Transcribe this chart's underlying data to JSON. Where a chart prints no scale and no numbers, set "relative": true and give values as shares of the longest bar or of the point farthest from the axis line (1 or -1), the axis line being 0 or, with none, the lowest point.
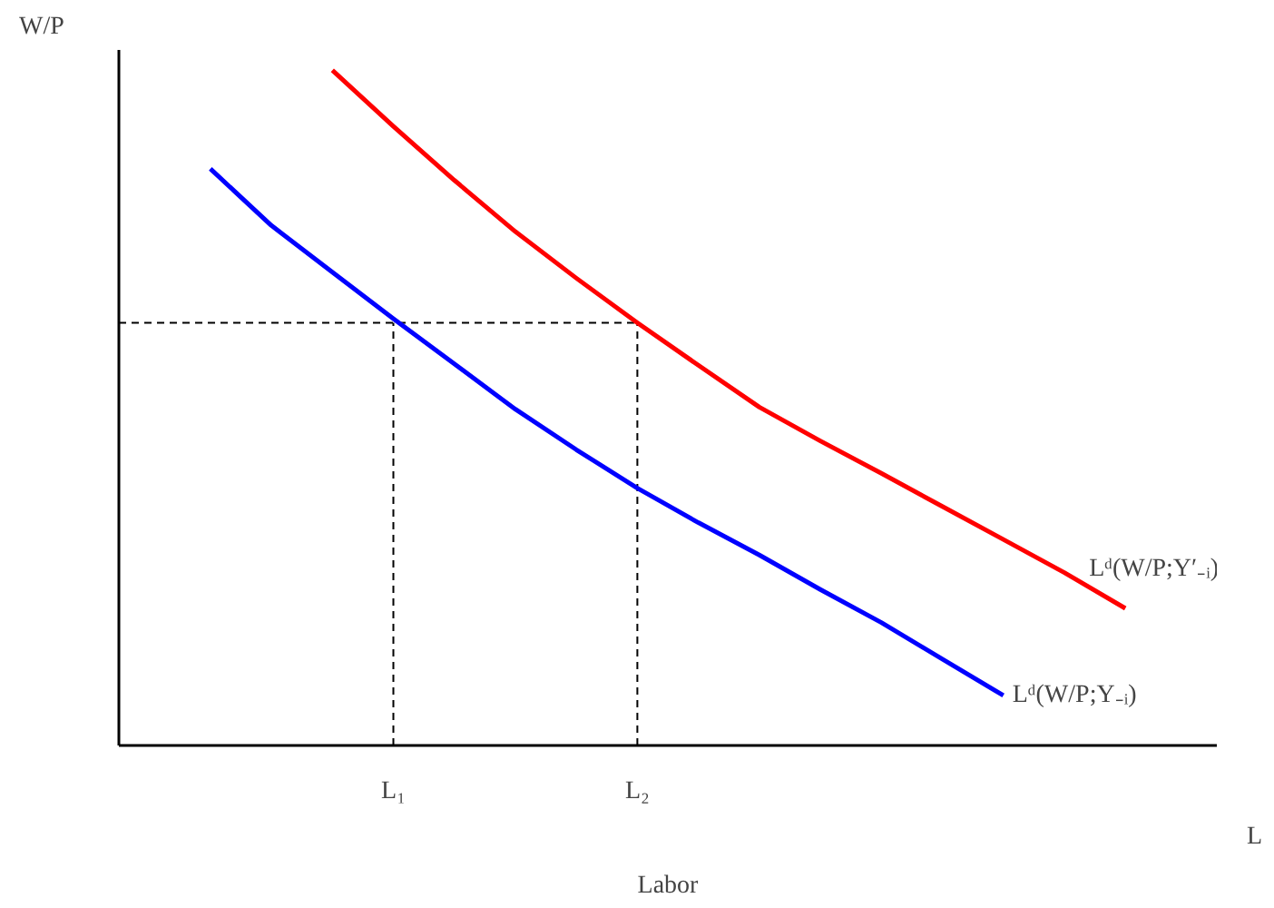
{
  "chart_data": {
    "type": "line",
    "relative": true,
    "xlabel": "Labor",
    "ylabel": "W/P",
    "annotations": [
      "L"
    ],
    "categories": [
      null,
      null,
      null,
      null,
      "L₁",
      null,
      null,
      null,
      "L₂",
      null,
      null,
      null,
      null,
      null,
      null,
      null,
      null,
      null
    ],
    "grid": false,
    "marker": "none",
    "line_style": "solid",
    "series": [
      {
        "name": "Lᵈ(W/P;Y′₋ᵢ)",
        "color": "#ff0000",
        "values": [
          null,
          null,
          null,
          1.0,
          0.917,
          0.837,
          0.761,
          0.692,
          0.626,
          0.563,
          0.501,
          0.451,
          0.403,
          0.354,
          0.305,
          0.256,
          0.203,
          null
        ]
      },
      {
        "name": "Lᵈ(W/P;Y₋ᵢ)",
        "color": "#0000ff",
        "values": [
          null,
          0.854,
          0.77,
          0.701,
          0.632,
          0.565,
          0.498,
          0.438,
          0.381,
          0.33,
          0.282,
          0.231,
          0.182,
          0.128,
          0.074,
          null,
          null,
          null
        ]
      }
    ],
    "ref_lines": [
      {
        "axis": "y",
        "value": 0.626,
        "line_style": "dashed",
        "color": "#000000"
      },
      {
        "axis": "x",
        "value": "L₁",
        "line_style": "dashed",
        "color": "#000000"
      },
      {
        "axis": "x",
        "value": "L₂",
        "line_style": "dashed",
        "color": "#000000"
      }
    ]
  }
}
